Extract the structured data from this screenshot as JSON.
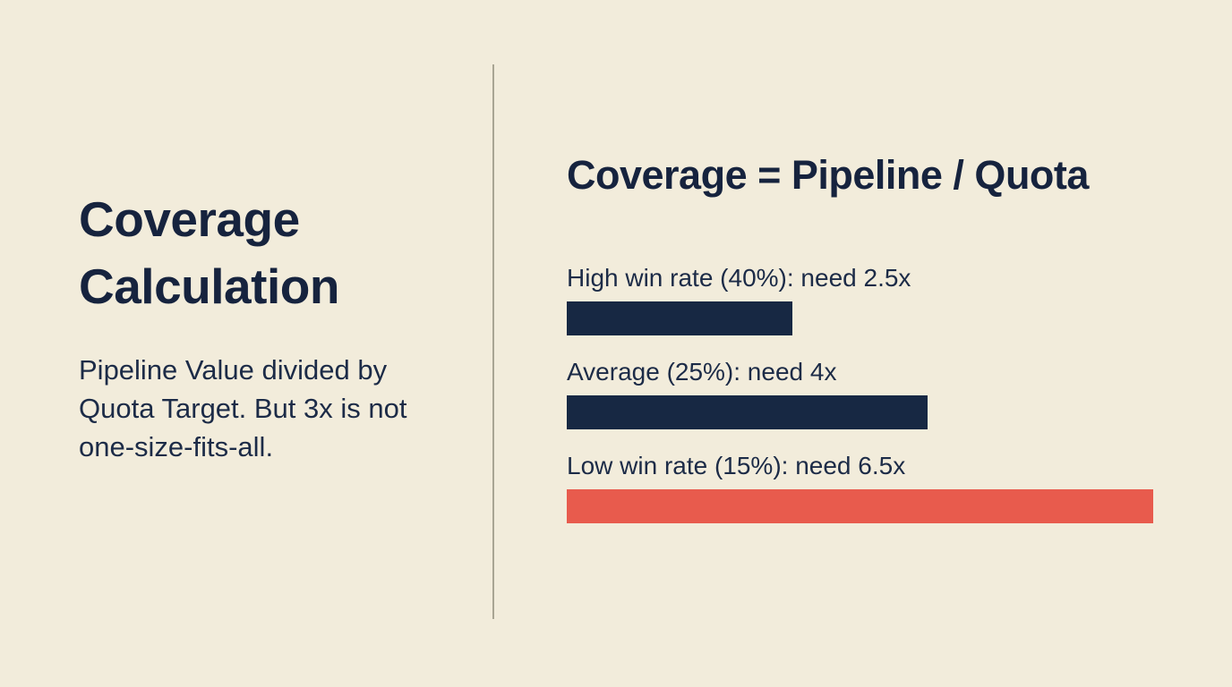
{
  "slide": {
    "left": {
      "title": "Coverage Calculation",
      "subtitle": "Pipeline Value divided by Quota Target. But 3x is not one-size-fits-all."
    },
    "right": {
      "heading": "Coverage = Pipeline / Quota"
    }
  },
  "chart_data": {
    "type": "bar",
    "orientation": "horizontal",
    "title": "Coverage = Pipeline / Quota",
    "categories": [
      "High win rate (40%)",
      "Average (25%)",
      "Low win rate (15%)"
    ],
    "values": [
      2.5,
      4,
      6.5
    ],
    "value_unit": "x coverage needed",
    "labels": [
      "High win rate (40%): need 2.5x",
      "Average (25%): need 4x",
      "Low win rate (15%): need 6.5x"
    ],
    "bar_colors": [
      "#172843",
      "#172843",
      "#e85b4d"
    ],
    "xlim": [
      0,
      6.5
    ],
    "grid": false,
    "legend": false
  },
  "colors": {
    "background": "#f2ecdb",
    "navy": "#172843",
    "text_navy": "#1c2b47",
    "red": "#e85b4d",
    "divider": "#a9a593"
  }
}
